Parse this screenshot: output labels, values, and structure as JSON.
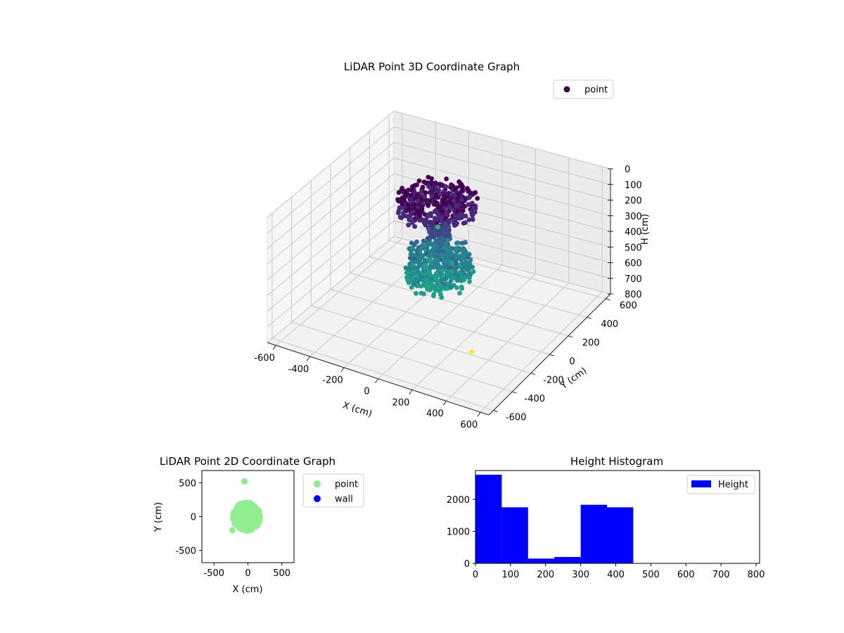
{
  "chart_data": [
    {
      "type": "scatter",
      "title": "LiDAR Point 3D Coordinate Graph",
      "xlabel": "X (cm)",
      "ylabel": "Y (cm)",
      "zlabel": "H (cm)",
      "x_ticks": [
        -600,
        -400,
        -200,
        0,
        200,
        400,
        600
      ],
      "y_ticks": [
        -600,
        -400,
        -200,
        0,
        200,
        400,
        600
      ],
      "z_ticks": [
        0,
        100,
        200,
        300,
        400,
        500,
        600,
        700,
        800
      ],
      "xlim": [
        -650,
        650
      ],
      "ylim": [
        -650,
        650
      ],
      "zlim": [
        0,
        800
      ],
      "z_inverted": true,
      "grid": true,
      "legend": {
        "position": "top-right",
        "entries": [
          "point"
        ]
      },
      "colormap": "viridis",
      "series": [
        {
          "name": "point",
          "color": "#440154",
          "clusters": [
            {
              "x": [
                -200,
                150
              ],
              "y": [
                -150,
                220
              ],
              "z": [
                380,
                560
              ]
            },
            {
              "x": [
                -80,
                60
              ],
              "y": [
                -60,
                80
              ],
              "z": [
                200,
                380
              ]
            },
            {
              "x": [
                -230,
                180
              ],
              "y": [
                -200,
                230
              ],
              "z": [
                0,
                120
              ]
            }
          ],
          "outliers": [
            {
              "x": -300,
              "y": 500,
              "z": 560
            },
            {
              "x": 300,
              "y": -200,
              "z": 780
            }
          ]
        }
      ]
    },
    {
      "type": "scatter",
      "title": "LiDAR Point 2D Coordinate Graph",
      "xlabel": "X (cm)",
      "ylabel": "Y (cm)",
      "x_ticks": [
        -500,
        0,
        500
      ],
      "y_ticks": [
        -500,
        0,
        500
      ],
      "xlim": [
        -680,
        680
      ],
      "ylim": [
        -680,
        680
      ],
      "grid": false,
      "legend": {
        "position": "outside-right",
        "entries": [
          "point",
          "wall"
        ]
      },
      "series": [
        {
          "name": "point",
          "color": "#90ee90",
          "cluster": {
            "cx": -20,
            "cy": 0,
            "rx": 200,
            "ry": 210
          },
          "points": [
            {
              "x": -50,
              "y": 520
            },
            {
              "x": -230,
              "y": -200
            }
          ]
        },
        {
          "name": "wall",
          "color": "#0000ff",
          "points": []
        }
      ]
    },
    {
      "type": "bar",
      "title": "Height Histogram",
      "xlabel": "",
      "ylabel": "",
      "bin_edges": [
        0,
        75,
        150,
        225,
        300,
        375,
        450
      ],
      "values": [
        2770,
        1750,
        150,
        200,
        1830,
        1750
      ],
      "x_ticks": [
        0,
        100,
        200,
        300,
        400,
        500,
        600,
        700,
        800
      ],
      "y_ticks": [
        0,
        1000,
        2000
      ],
      "xlim": [
        0,
        810
      ],
      "ylim": [
        0,
        2900
      ],
      "grid": false,
      "legend": {
        "position": "top-right",
        "entries": [
          "Height"
        ]
      },
      "series": [
        {
          "name": "Height",
          "color": "#0000ff"
        }
      ]
    }
  ]
}
